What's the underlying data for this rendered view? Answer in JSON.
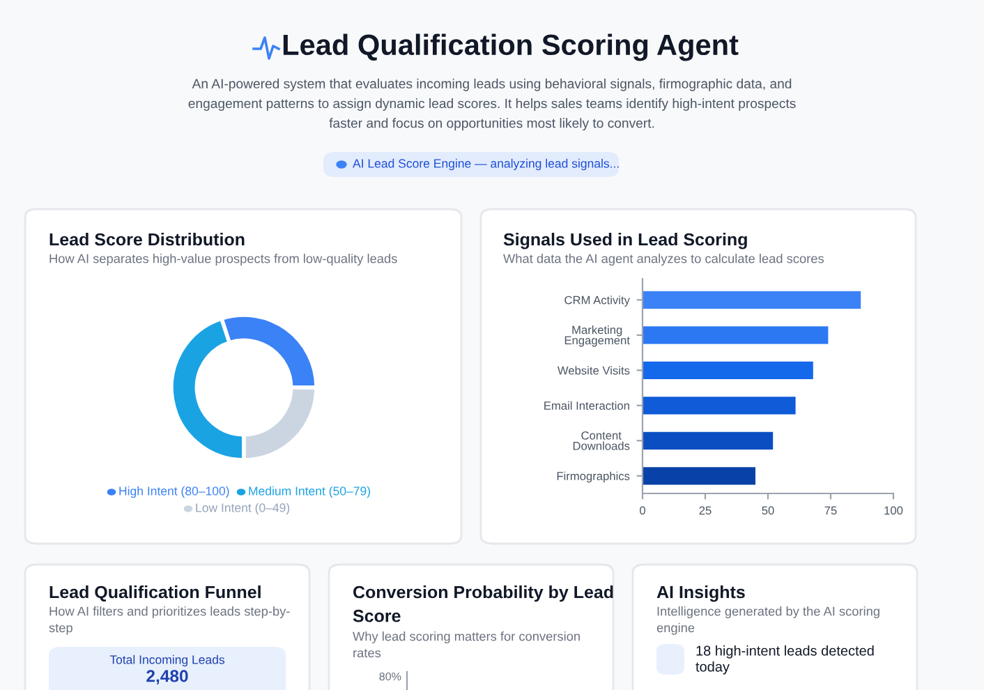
{
  "chart_data": [
    {
      "type": "other",
      "title": "Lead Qualification Scoring Agent",
      "subtitle": "An AI-powered system that evaluates incoming leads using behavioral signals, firmographic data, and\nengagement patterns to assign dynamic lead scores. It helps sales teams identify high-intent prospects\nfaster and focus on opportunities most likely to convert.",
      "annotations": [
        "AI Lead Score Engine — analyzing lead signals..."
      ]
    },
    {
      "type": "donut",
      "title": "Lead Score Distribution",
      "subtitle": "How AI separates high-value prospects from low-quality leads",
      "categories": [
        "High Intent (80–100)",
        "Medium Intent (50–79)",
        "Low Intent (0–49)"
      ],
      "values": [
        30,
        45,
        25
      ],
      "colors": [
        "#3b82f6",
        "#1aa3e3",
        "#cbd5e1"
      ],
      "legend": "bottom"
    },
    {
      "type": "bar",
      "orientation": "horizontal",
      "title": "Signals Used in Lead Scoring",
      "subtitle": "What data the AI agent analyzes to calculate lead scores",
      "categories": [
        "CRM Activity",
        "Marketing\nEngagement",
        "Website Visits",
        "Email Interaction",
        "Content\nDownloads",
        "Firmographics"
      ],
      "values": [
        87,
        74,
        68,
        61,
        52,
        45
      ],
      "colors": [
        "#3b82f6",
        "#2b78f2",
        "#1468ea",
        "#0f5bd8",
        "#0b4ec2",
        "#0842a8"
      ],
      "xlim": [
        0,
        100
      ],
      "xticks": [
        0,
        25,
        50,
        75,
        100
      ],
      "grid": false
    },
    {
      "type": "other",
      "title": "Lead Qualification Funnel",
      "subtitle": "How AI filters and prioritizes leads step-by-\nstep",
      "annotations": [
        "Total Incoming Leads",
        "2,480"
      ]
    },
    {
      "type": "other",
      "title": "Conversion Probability by Lead\nScore",
      "subtitle": "Why lead scoring matters for conversion\nrates",
      "annotations": [
        "80%"
      ]
    },
    {
      "type": "other",
      "title": "AI Insights",
      "subtitle": "Intelligence generated by the AI scoring\nengine",
      "annotations": [
        "18 high-intent leads detected\ntoday"
      ]
    }
  ]
}
